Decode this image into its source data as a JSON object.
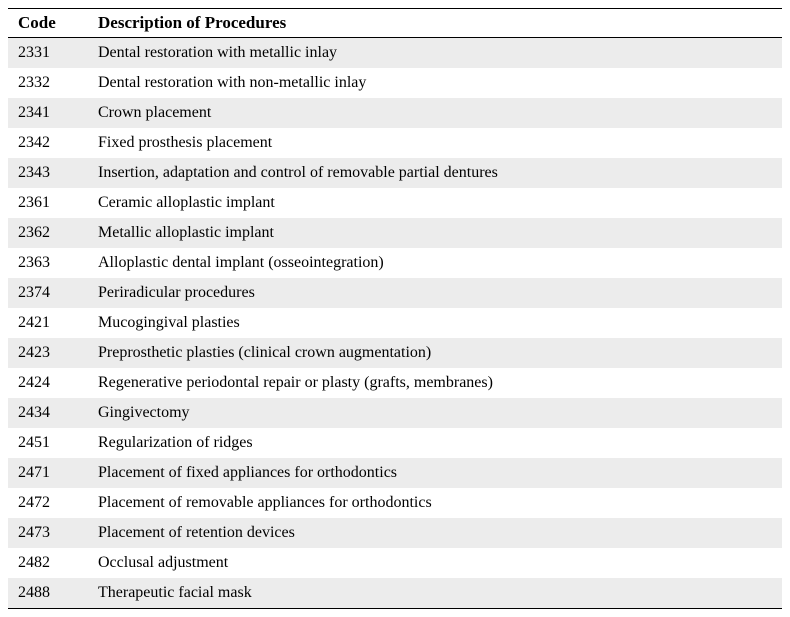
{
  "table": {
    "columns": [
      "Code",
      "Description of Procedures"
    ],
    "header_fontsize": 17,
    "header_fontweight": "bold",
    "cell_fontsize": 16,
    "font_family": "Times New Roman",
    "border_color": "#000000",
    "row_odd_bg": "#ececec",
    "row_even_bg": "#ffffff",
    "code_col_width": 88,
    "rows": [
      {
        "code": "2331",
        "description": "Dental restoration with metallic inlay"
      },
      {
        "code": "2332",
        "description": "Dental restoration with non-metallic inlay"
      },
      {
        "code": "2341",
        "description": "Crown placement"
      },
      {
        "code": "2342",
        "description": "Fixed prosthesis placement"
      },
      {
        "code": "2343",
        "description": "Insertion, adaptation and control of removable partial dentures"
      },
      {
        "code": "2361",
        "description": "Ceramic alloplastic implant"
      },
      {
        "code": "2362",
        "description": "Metallic alloplastic implant"
      },
      {
        "code": "2363",
        "description": "Alloplastic dental implant (osseointegration)"
      },
      {
        "code": "2374",
        "description": "Periradicular procedures"
      },
      {
        "code": "2421",
        "description": "Mucogingival plasties"
      },
      {
        "code": "2423",
        "description": "Preprosthetic plasties (clinical crown augmentation)"
      },
      {
        "code": "2424",
        "description": "Regenerative periodontal repair or plasty (grafts, membranes)"
      },
      {
        "code": "2434",
        "description": "Gingivectomy"
      },
      {
        "code": "2451",
        "description": "Regularization of ridges"
      },
      {
        "code": "2471",
        "description": "Placement of fixed appliances for orthodontics"
      },
      {
        "code": "2472",
        "description": "Placement of removable appliances for orthodontics"
      },
      {
        "code": "2473",
        "description": "Placement of retention devices"
      },
      {
        "code": "2482",
        "description": "Occlusal adjustment"
      },
      {
        "code": "2488",
        "description": "Therapeutic facial mask"
      }
    ]
  }
}
